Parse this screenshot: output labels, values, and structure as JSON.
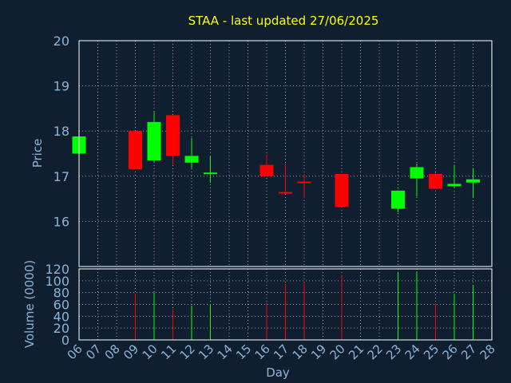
{
  "chart_data": {
    "type": "candlestick",
    "title": "STAA - last updated 27/06/2025",
    "xlabel": "Day",
    "price_ylabel": "Price",
    "volume_ylabel": "Volume (0000)",
    "colors": {
      "background": "#0f1f30",
      "title": "#ffff00",
      "axis_text": "#8ab4d8",
      "grid": "#9aa0a8",
      "up": "#00ff00",
      "down": "#ff0000",
      "frame": "#ffffff"
    },
    "x_ticks": [
      "06",
      "07",
      "08",
      "09",
      "10",
      "11",
      "12",
      "13",
      "14",
      "15",
      "16",
      "17",
      "18",
      "19",
      "20",
      "21",
      "22",
      "23",
      "24",
      "25",
      "26",
      "27",
      "28"
    ],
    "price_ylim": [
      15.0,
      20.0
    ],
    "price_ticks": [
      16,
      17,
      18,
      19,
      20
    ],
    "volume_ylim": [
      0,
      120
    ],
    "volume_ticks": [
      0,
      20,
      40,
      60,
      80,
      100,
      120
    ],
    "candles": [
      {
        "day": "06",
        "open": 17.5,
        "high": 17.88,
        "low": 17.48,
        "close": 17.88
      },
      {
        "day": "09",
        "open": 18.0,
        "high": 18.0,
        "low": 17.15,
        "close": 17.15
      },
      {
        "day": "10",
        "open": 17.35,
        "high": 18.42,
        "low": 17.3,
        "close": 18.2
      },
      {
        "day": "11",
        "open": 18.35,
        "high": 18.35,
        "low": 17.25,
        "close": 17.45
      },
      {
        "day": "12",
        "open": 17.3,
        "high": 17.85,
        "low": 17.18,
        "close": 17.45
      },
      {
        "day": "13",
        "open": 17.05,
        "high": 17.45,
        "low": 16.85,
        "close": 17.08
      },
      {
        "day": "16",
        "open": 17.25,
        "high": 17.48,
        "low": 17.0,
        "close": 17.0
      },
      {
        "day": "17",
        "open": 16.65,
        "high": 17.28,
        "low": 16.62,
        "close": 16.63
      },
      {
        "day": "18",
        "open": 16.88,
        "high": 17.05,
        "low": 16.52,
        "close": 16.86
      },
      {
        "day": "20",
        "open": 17.05,
        "high": 17.05,
        "low": 16.32,
        "close": 16.32
      },
      {
        "day": "23",
        "open": 16.28,
        "high": 16.68,
        "low": 16.2,
        "close": 16.68
      },
      {
        "day": "24",
        "open": 16.95,
        "high": 17.28,
        "low": 16.55,
        "close": 17.2
      },
      {
        "day": "25",
        "open": 17.05,
        "high": 17.08,
        "low": 16.72,
        "close": 16.72
      },
      {
        "day": "26",
        "open": 16.78,
        "high": 17.25,
        "low": 16.75,
        "close": 16.83
      },
      {
        "day": "27",
        "open": 16.86,
        "high": 17.18,
        "low": 16.52,
        "close": 16.93
      }
    ],
    "volume": [
      {
        "day": "09",
        "value": 78,
        "dir": "down"
      },
      {
        "day": "10",
        "value": 80,
        "dir": "up"
      },
      {
        "day": "11",
        "value": 52,
        "dir": "down"
      },
      {
        "day": "12",
        "value": 58,
        "dir": "up"
      },
      {
        "day": "13",
        "value": 60,
        "dir": "up"
      },
      {
        "day": "16",
        "value": 63,
        "dir": "down"
      },
      {
        "day": "17",
        "value": 95,
        "dir": "down"
      },
      {
        "day": "18",
        "value": 98,
        "dir": "down"
      },
      {
        "day": "20",
        "value": 110,
        "dir": "down"
      },
      {
        "day": "23",
        "value": 115,
        "dir": "up"
      },
      {
        "day": "24",
        "value": 116,
        "dir": "up"
      },
      {
        "day": "25",
        "value": 62,
        "dir": "down"
      },
      {
        "day": "26",
        "value": 78,
        "dir": "up"
      },
      {
        "day": "27",
        "value": 92,
        "dir": "up"
      }
    ]
  }
}
